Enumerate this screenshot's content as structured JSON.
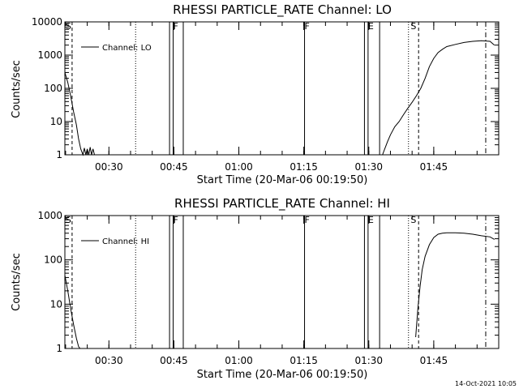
{
  "chart_data": [
    {
      "type": "line",
      "title": "RHESSI PARTICLE_RATE Channel: LO",
      "xlabel": "Start Time (20-Mar-06 00:19:50)",
      "ylabel": "Counts/sec",
      "yscale": "log",
      "ylim": [
        1,
        10000
      ],
      "xlim": [
        "00:19:50",
        "02:00:00"
      ],
      "x_ticks": [
        "00:30",
        "00:45",
        "01:00",
        "01:15",
        "01:30",
        "01:45"
      ],
      "y_ticks": [
        "1",
        "10",
        "100",
        "1000",
        "10000"
      ],
      "legend": {
        "label": "Channel: LO",
        "position": "top-left"
      },
      "flag_labels": [
        "S",
        "F",
        "F",
        "E",
        "S"
      ],
      "grid": false,
      "series": [
        {
          "name": "Channel: LO",
          "x": [
            "00:19:50",
            "00:20:30",
            "00:21:10",
            "00:21:50",
            "00:22:30",
            "00:23:00",
            "00:23:30",
            "00:24:00",
            "00:24:20",
            "00:24:40",
            "00:25:00",
            "00:25:20",
            "00:25:40",
            "00:26:00",
            "00:26:20",
            "00:26:40"
          ],
          "y": [
            300,
            150,
            60,
            20,
            8,
            3,
            1.5,
            1,
            1.6,
            1,
            1.5,
            1,
            1.7,
            1,
            1.5,
            1
          ]
        },
        {
          "name": "",
          "x": [
            "01:33:10",
            "01:33:40",
            "01:34:20",
            "01:35:00",
            "01:36:00",
            "01:37:00",
            "01:38:00",
            "01:39:00",
            "01:40:00",
            "01:41:00",
            "01:42:00",
            "01:43:00",
            "01:44:00",
            "01:45:00",
            "01:46:00",
            "01:47:00",
            "01:48:00",
            "01:50:00",
            "01:52:00",
            "01:54:00",
            "01:56:00",
            "01:58:00",
            "01:59:00"
          ],
          "y": [
            1,
            1.5,
            2.5,
            4,
            7,
            10,
            16,
            25,
            38,
            60,
            100,
            200,
            450,
            800,
            1200,
            1500,
            1800,
            2100,
            2400,
            2600,
            2700,
            2600,
            2000
          ]
        }
      ]
    },
    {
      "type": "line",
      "title": "RHESSI PARTICLE_RATE Channel: HI",
      "xlabel": "Start Time (20-Mar-06 00:19:50)",
      "ylabel": "Counts/sec",
      "yscale": "log",
      "ylim": [
        1,
        1000
      ],
      "xlim": [
        "00:19:50",
        "02:00:00"
      ],
      "x_ticks": [
        "00:30",
        "00:45",
        "01:00",
        "01:15",
        "01:30",
        "01:45"
      ],
      "y_ticks": [
        "1",
        "10",
        "100",
        "1000"
      ],
      "legend": {
        "label": "Channel: HI",
        "position": "top-left"
      },
      "flag_labels": [
        "S",
        "F",
        "F",
        "E",
        "S"
      ],
      "grid": false,
      "series": [
        {
          "name": "Channel: HI",
          "x": [
            "00:19:50",
            "00:20:30",
            "00:21:10",
            "00:21:50",
            "00:22:30",
            "00:23:00",
            "00:23:20"
          ],
          "y": [
            45,
            20,
            8,
            3.5,
            1.7,
            1.1,
            1
          ]
        },
        {
          "name": "",
          "x": [
            "01:40:50",
            "01:41:20",
            "01:41:50",
            "01:42:20",
            "01:43:00",
            "01:44:00",
            "01:45:00",
            "01:46:00",
            "01:47:00",
            "01:48:00",
            "01:50:00",
            "01:52:00",
            "01:54:00",
            "01:56:00",
            "01:58:00",
            "01:59:00"
          ],
          "y": [
            1.8,
            8,
            25,
            60,
            120,
            220,
            320,
            380,
            400,
            410,
            410,
            400,
            380,
            350,
            330,
            290
          ]
        }
      ]
    }
  ],
  "timestamp": "14-Oct-2021 10:05"
}
